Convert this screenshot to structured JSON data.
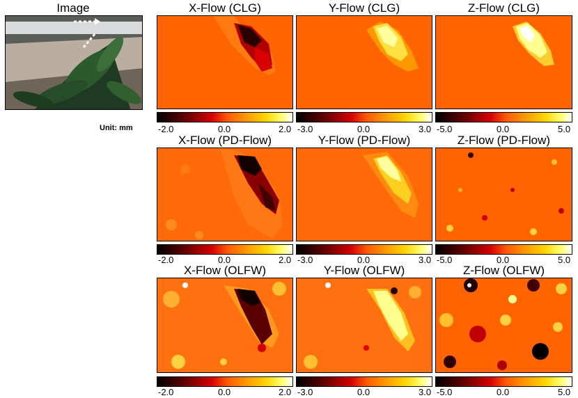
{
  "image_title": "Image",
  "unit_label": "Unit: mm",
  "rows": [
    {
      "titles": [
        "X-Flow (CLG)",
        "Y-Flow (CLG)",
        "Z-Flow (CLG)"
      ]
    },
    {
      "titles": [
        "X-Flow (PD-Flow)",
        "Y-Flow (PD-Flow)",
        "Z-Flow (PD-Flow)"
      ]
    },
    {
      "titles": [
        "X-Flow (OLFW)",
        "Y-Flow (OLFW)",
        "Z-Flow (OLFW)"
      ]
    }
  ],
  "colorbars": {
    "x": [
      "-2.0",
      "0.0",
      "2.0"
    ],
    "y": [
      "-3.0",
      "0.0",
      "3.0"
    ],
    "z": [
      "-5.0",
      "0.0",
      "5.0"
    ]
  },
  "colors": {
    "field": "#ff6400",
    "dark": "#000000",
    "bright": "#ffff90"
  }
}
